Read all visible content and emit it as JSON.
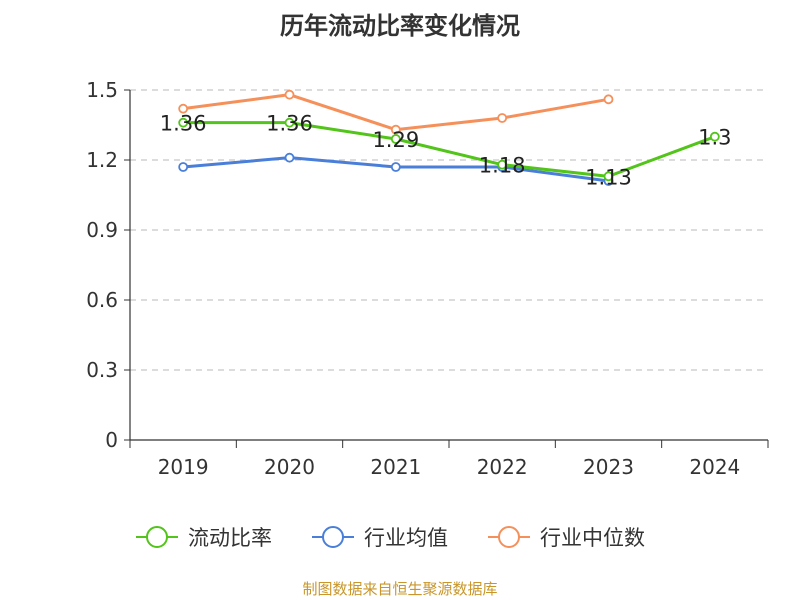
{
  "chart_data": {
    "type": "line",
    "title": "历年流动比率变化情况",
    "categories": [
      "2019",
      "2020",
      "2021",
      "2022",
      "2023",
      "2024"
    ],
    "ylim": [
      0,
      1.5
    ],
    "yticks": [
      "0",
      "0.3",
      "0.6",
      "0.9",
      "1.2",
      "1.5"
    ],
    "grid": true,
    "legend_position": "bottom",
    "series": [
      {
        "name": "流动比率",
        "color": "#52c41a",
        "values": [
          1.36,
          1.36,
          1.29,
          1.18,
          1.13,
          1.3
        ],
        "labels": [
          "1.36",
          "1.36",
          "1.29",
          "1.18",
          "1.13",
          "1.3"
        ]
      },
      {
        "name": "行业均值",
        "color": "#4a7fd9",
        "values": [
          1.17,
          1.21,
          1.17,
          1.17,
          1.11,
          null
        ]
      },
      {
        "name": "行业中位数",
        "color": "#f5905a",
        "values": [
          1.42,
          1.48,
          1.33,
          1.38,
          1.46,
          null
        ]
      }
    ]
  },
  "source": {
    "text": "制图数据来自恒生聚源数据库",
    "color": "#c8962a"
  }
}
